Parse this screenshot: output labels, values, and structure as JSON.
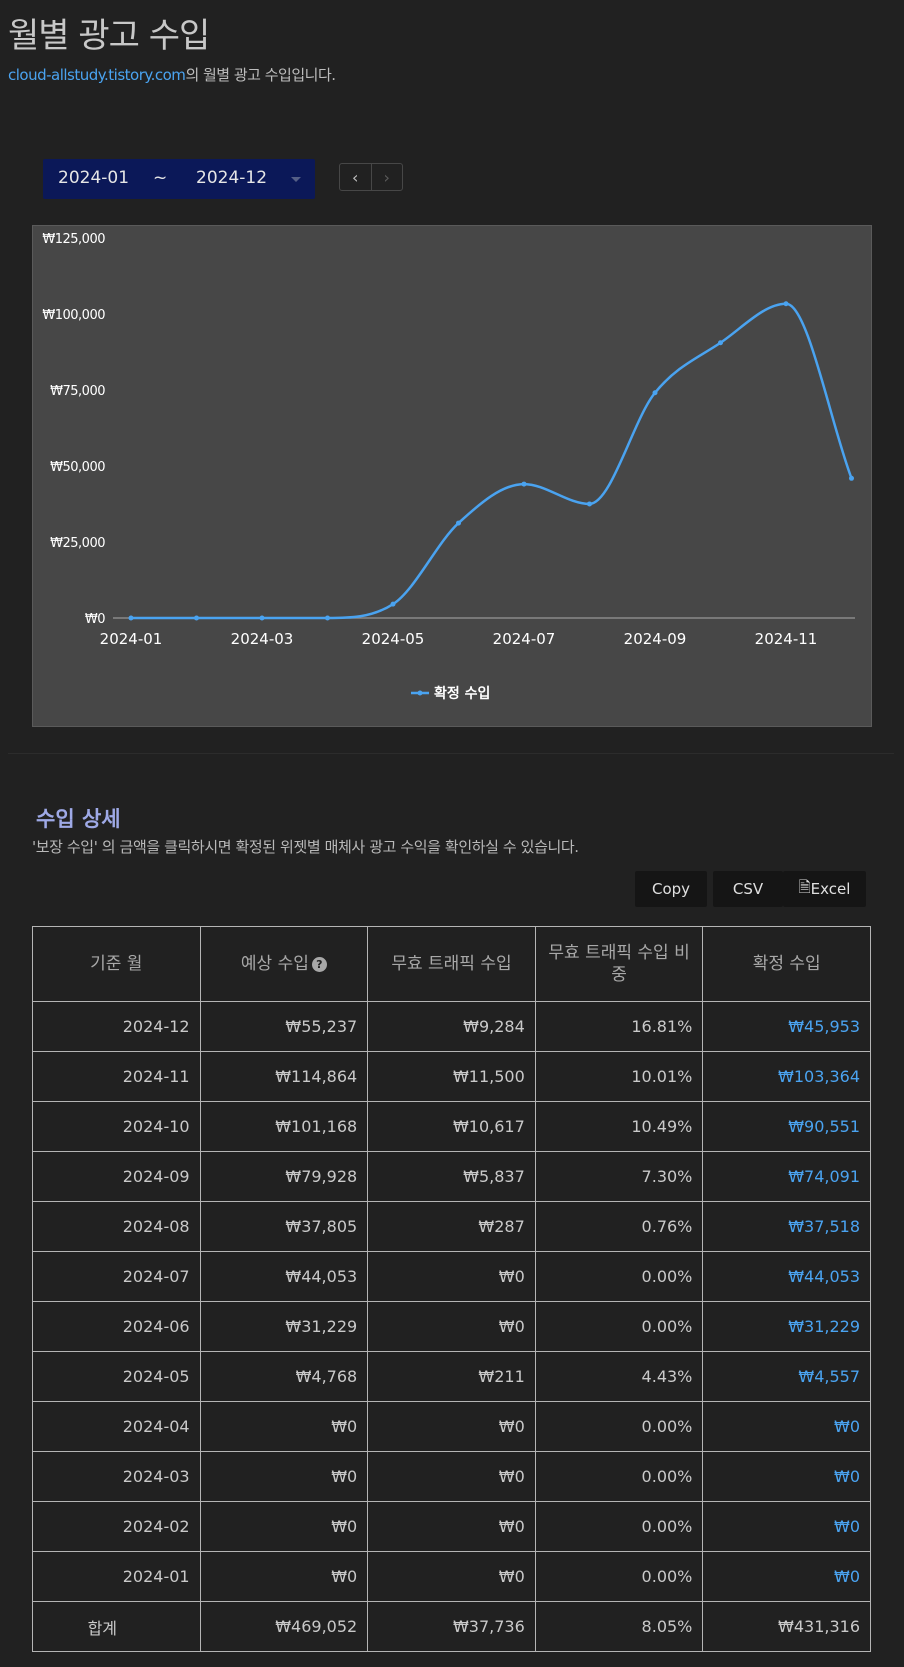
{
  "header": {
    "title": "월별 광고 수입",
    "site_link": "cloud-allstudy.tistory.com",
    "subtitle_suffix": "의 월별 광고 수입입니다."
  },
  "date_range": {
    "from": "2024-01",
    "separator": "~",
    "to": "2024-12"
  },
  "nav": {
    "prev_icon": "chevron-left-icon",
    "next_icon": "chevron-right-icon"
  },
  "chart_data": {
    "type": "line",
    "x": [
      "2024-01",
      "2024-02",
      "2024-03",
      "2024-04",
      "2024-05",
      "2024-06",
      "2024-07",
      "2024-08",
      "2024-09",
      "2024-10",
      "2024-11",
      "2024-12"
    ],
    "x_tick_labels": [
      "2024-01",
      "2024-03",
      "2024-05",
      "2024-07",
      "2024-09",
      "2024-11"
    ],
    "y_tick_labels": [
      "₩0",
      "₩25,000",
      "₩50,000",
      "₩75,000",
      "₩100,000",
      "₩125,000"
    ],
    "ylim": [
      0,
      125000
    ],
    "series": [
      {
        "name": "확정 수입",
        "color": "#4aa3f0",
        "values": [
          0,
          0,
          0,
          0,
          4557,
          31229,
          44053,
          37518,
          74091,
          90551,
          103364,
          45953
        ]
      }
    ],
    "legend_position": "bottom",
    "grid": false
  },
  "detail": {
    "title": "수입 상세",
    "description": "'보장 수입' 의 금액을 클릭하시면 확정된 위젯별 매체사 광고 수익을 확인하실 수 있습니다.",
    "buttons": {
      "copy": "Copy",
      "csv": "CSV",
      "excel": "Excel"
    },
    "columns": [
      "기준 월",
      "예상 수입",
      "무효 트래픽 수입",
      "무효 트래픽 수입 비중",
      "확정 수입"
    ],
    "rows": [
      [
        "2024-12",
        "₩55,237",
        "₩9,284",
        "16.81%",
        "₩45,953"
      ],
      [
        "2024-11",
        "₩114,864",
        "₩11,500",
        "10.01%",
        "₩103,364"
      ],
      [
        "2024-10",
        "₩101,168",
        "₩10,617",
        "10.49%",
        "₩90,551"
      ],
      [
        "2024-09",
        "₩79,928",
        "₩5,837",
        "7.30%",
        "₩74,091"
      ],
      [
        "2024-08",
        "₩37,805",
        "₩287",
        "0.76%",
        "₩37,518"
      ],
      [
        "2024-07",
        "₩44,053",
        "₩0",
        "0.00%",
        "₩44,053"
      ],
      [
        "2024-06",
        "₩31,229",
        "₩0",
        "0.00%",
        "₩31,229"
      ],
      [
        "2024-05",
        "₩4,768",
        "₩211",
        "4.43%",
        "₩4,557"
      ],
      [
        "2024-04",
        "₩0",
        "₩0",
        "0.00%",
        "₩0"
      ],
      [
        "2024-03",
        "₩0",
        "₩0",
        "0.00%",
        "₩0"
      ],
      [
        "2024-02",
        "₩0",
        "₩0",
        "0.00%",
        "₩0"
      ],
      [
        "2024-01",
        "₩0",
        "₩0",
        "0.00%",
        "₩0"
      ]
    ],
    "total": [
      "합계",
      "₩469,052",
      "₩37,736",
      "8.05%",
      "₩431,316"
    ]
  }
}
